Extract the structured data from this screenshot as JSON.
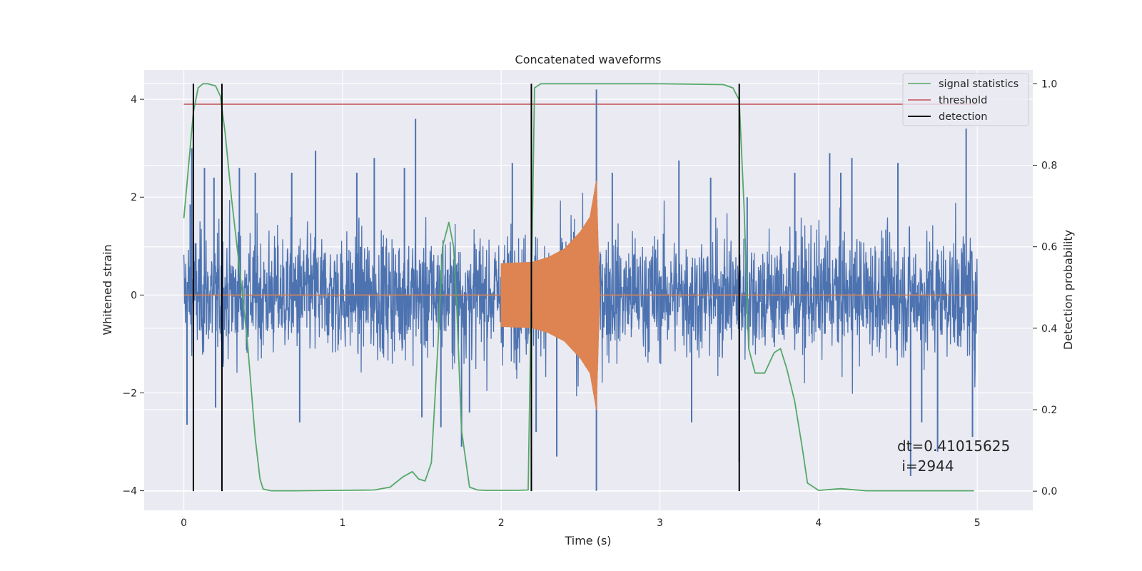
{
  "chart_data": {
    "type": "line",
    "title": "Concatenated waveforms",
    "xlabel": "Time (s)",
    "ylabel": "Whitened strain",
    "y2label": "Detection probability",
    "xlim": [
      -0.25,
      5.35
    ],
    "ylim": [
      -4.4,
      4.6
    ],
    "y2lim": [
      -0.047,
      1.034
    ],
    "x_ticks": [
      0,
      1,
      2,
      3,
      4,
      5
    ],
    "y_ticks": [
      -4,
      -2,
      0,
      2,
      4
    ],
    "y2_ticks": [
      0.0,
      0.2,
      0.4,
      0.6,
      0.8,
      1.0
    ],
    "x_tick_labels": [
      "0",
      "1",
      "2",
      "3",
      "4",
      "5"
    ],
    "y_tick_labels": [
      "−4",
      "−2",
      "0",
      "2",
      "4"
    ],
    "y2_tick_labels": [
      "0.0",
      "0.2",
      "0.4",
      "0.6",
      "0.8",
      "1.0"
    ],
    "grid": true,
    "legend_position": "top-right",
    "colors": {
      "background": "#eaeaf2",
      "grid": "#ffffff",
      "strain": "#4c72b0",
      "injection": "#dd8452",
      "statistics": "#55a868",
      "threshold": "#c44e52",
      "detection": "#000000"
    },
    "series": [
      {
        "name": "",
        "axis": "left",
        "kind": "noise",
        "x_range": [
          0.0,
          5.0
        ],
        "amplitude_envelope": 1.6,
        "peak_values": [
          {
            "x": 0.02,
            "y": -2.65
          },
          {
            "x": 0.04,
            "y": 1.85
          },
          {
            "x": 0.05,
            "y": 3.0
          },
          {
            "x": 0.13,
            "y": 2.6
          },
          {
            "x": 0.19,
            "y": 2.4
          },
          {
            "x": 0.2,
            "y": -2.3
          },
          {
            "x": 0.24,
            "y": 3.3
          },
          {
            "x": 0.35,
            "y": 2.6
          },
          {
            "x": 0.45,
            "y": 2.5
          },
          {
            "x": 0.68,
            "y": 2.5
          },
          {
            "x": 0.73,
            "y": -2.6
          },
          {
            "x": 0.83,
            "y": 2.95
          },
          {
            "x": 1.09,
            "y": 2.5
          },
          {
            "x": 1.2,
            "y": 2.8
          },
          {
            "x": 1.39,
            "y": 2.6
          },
          {
            "x": 1.46,
            "y": 3.6
          },
          {
            "x": 1.5,
            "y": -2.5
          },
          {
            "x": 1.62,
            "y": -2.7
          },
          {
            "x": 1.75,
            "y": -3.1
          },
          {
            "x": 1.8,
            "y": -2.4
          },
          {
            "x": 2.07,
            "y": 2.7
          },
          {
            "x": 2.22,
            "y": -2.8
          },
          {
            "x": 2.35,
            "y": -3.3
          },
          {
            "x": 2.6,
            "y": 4.2
          },
          {
            "x": 2.6,
            "y": -4.0
          },
          {
            "x": 2.7,
            "y": 2.5
          },
          {
            "x": 3.12,
            "y": 2.75
          },
          {
            "x": 3.2,
            "y": -2.6
          },
          {
            "x": 3.32,
            "y": 2.4
          },
          {
            "x": 3.5,
            "y": -3.4
          },
          {
            "x": 3.55,
            "y": 2.0
          },
          {
            "x": 3.85,
            "y": 2.5
          },
          {
            "x": 4.07,
            "y": 2.9
          },
          {
            "x": 4.14,
            "y": 2.5
          },
          {
            "x": 4.21,
            "y": 2.8
          },
          {
            "x": 4.5,
            "y": 2.7
          },
          {
            "x": 4.58,
            "y": -3.7
          },
          {
            "x": 4.65,
            "y": -2.6
          },
          {
            "x": 4.75,
            "y": -3.2
          },
          {
            "x": 4.93,
            "y": 3.4
          },
          {
            "x": 4.97,
            "y": -2.9
          }
        ]
      },
      {
        "name": "",
        "axis": "left",
        "kind": "chirp",
        "x_range": [
          2.0,
          2.62
        ],
        "envelope": [
          {
            "x": 2.0,
            "y": 0.65
          },
          {
            "x": 2.2,
            "y": 0.68
          },
          {
            "x": 2.3,
            "y": 0.78
          },
          {
            "x": 2.4,
            "y": 0.95
          },
          {
            "x": 2.5,
            "y": 1.3
          },
          {
            "x": 2.56,
            "y": 1.6
          },
          {
            "x": 2.6,
            "y": 2.35
          },
          {
            "x": 2.62,
            "y": 0.05
          }
        ]
      },
      {
        "name": "signal statistics",
        "axis": "right",
        "x": [
          0.0,
          0.03,
          0.06,
          0.09,
          0.12,
          0.15,
          0.2,
          0.23,
          0.26,
          0.3,
          0.35,
          0.4,
          0.45,
          0.48,
          0.5,
          0.55,
          0.7,
          1.0,
          1.2,
          1.3,
          1.38,
          1.44,
          1.48,
          1.52,
          1.56,
          1.6,
          1.63,
          1.67,
          1.7,
          1.72,
          1.75,
          1.8,
          1.85,
          1.9,
          2.1,
          2.17,
          2.19,
          2.21,
          2.25,
          2.5,
          3.0,
          3.4,
          3.46,
          3.5,
          3.53,
          3.56,
          3.6,
          3.66,
          3.72,
          3.76,
          3.8,
          3.85,
          3.9,
          3.93,
          4.0,
          4.14,
          4.3,
          4.98
        ],
        "values": [
          0.67,
          0.8,
          0.93,
          0.99,
          1.0,
          1.0,
          0.995,
          0.97,
          0.88,
          0.72,
          0.55,
          0.37,
          0.13,
          0.03,
          0.005,
          0.001,
          0.001,
          0.002,
          0.003,
          0.01,
          0.035,
          0.048,
          0.03,
          0.025,
          0.07,
          0.35,
          0.6,
          0.66,
          0.6,
          0.45,
          0.15,
          0.01,
          0.003,
          0.002,
          0.002,
          0.003,
          0.5,
          0.99,
          1.0,
          1.0,
          1.0,
          0.998,
          0.99,
          0.96,
          0.7,
          0.35,
          0.29,
          0.29,
          0.34,
          0.35,
          0.3,
          0.22,
          0.1,
          0.02,
          0.002,
          0.006,
          0.001,
          0.001
        ]
      },
      {
        "name": "threshold",
        "axis": "right",
        "x": [
          0.0,
          5.0
        ],
        "values": [
          0.95,
          0.95
        ]
      },
      {
        "name": "detection",
        "axis": "right",
        "kind": "vlines",
        "x": [
          0.06,
          0.24,
          2.19,
          3.5
        ],
        "ymin": 0.0,
        "ymax": 1.0
      }
    ],
    "annotation": {
      "lines": [
        "dt=0.41015625",
        " i=2944"
      ]
    }
  }
}
